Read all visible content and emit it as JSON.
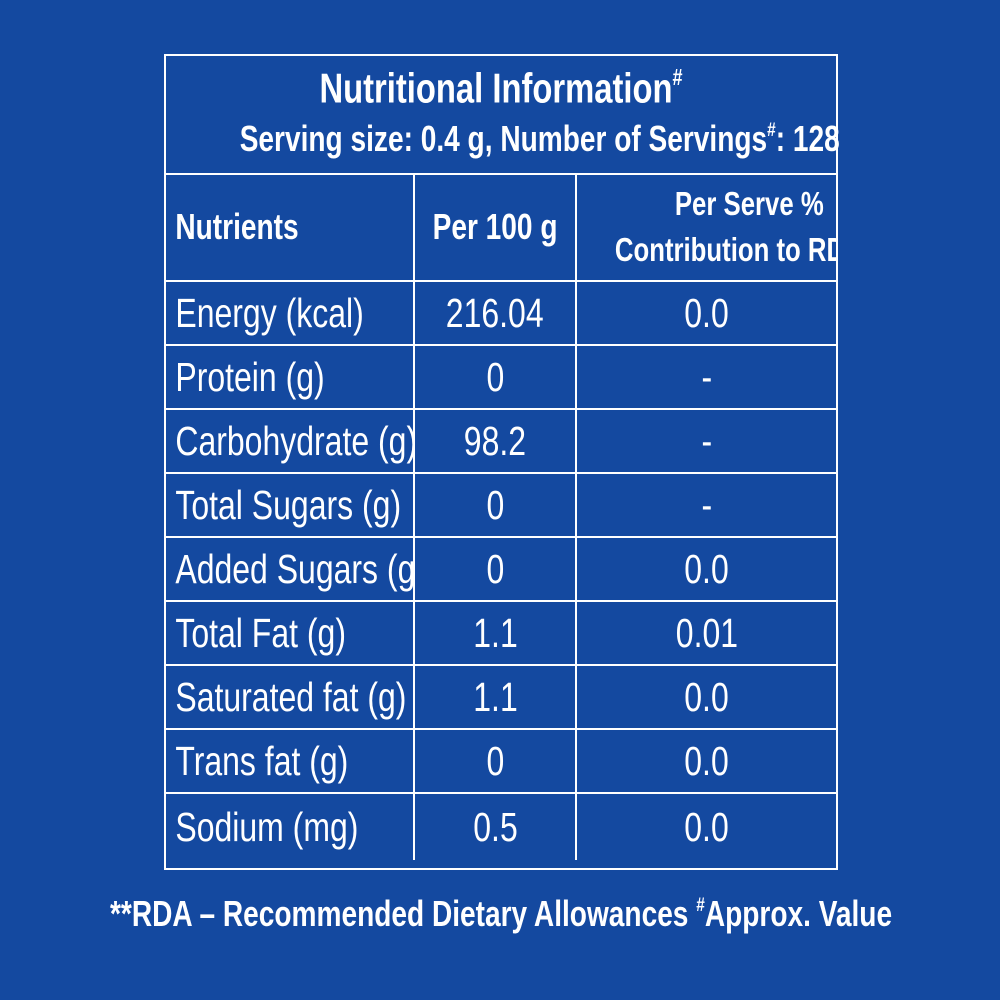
{
  "header": {
    "title": "Nutritional Information",
    "title_mark": "#",
    "serving_prefix": "Serving size: 0.4 g, Number of Servings",
    "serving_mark": "#",
    "serving_suffix": ": 128"
  },
  "table": {
    "columns": [
      "Nutrients",
      "Per 100 g",
      "Per Serve %",
      "Contribution to RDA**"
    ],
    "rows": [
      {
        "nutrient": "Energy (kcal)",
        "per100g": "216.04",
        "rda": "0.0"
      },
      {
        "nutrient": "Protein (g)",
        "per100g": "0",
        "rda": "-"
      },
      {
        "nutrient": "Carbohydrate (g)",
        "per100g": "98.2",
        "rda": "-"
      },
      {
        "nutrient": "Total Sugars (g)",
        "per100g": "0",
        "rda": "-"
      },
      {
        "nutrient": "Added Sugars (g)",
        "per100g": "0",
        "rda": "0.0"
      },
      {
        "nutrient": "Total Fat (g)",
        "per100g": "1.1",
        "rda": "0.01"
      },
      {
        "nutrient": "Saturated fat (g)",
        "per100g": "1.1",
        "rda": "0.0"
      },
      {
        "nutrient": "Trans fat (g)",
        "per100g": "0",
        "rda": "0.0"
      },
      {
        "nutrient": "Sodium (mg)",
        "per100g": "0.5",
        "rda": "0.0"
      }
    ]
  },
  "footnote": {
    "rda_part": "**RDA – Recommended Dietary Allowances ",
    "approx_mark": "#",
    "approx_part": "Approx. Value"
  },
  "colors": {
    "background": "#1449a0",
    "text": "#ffffff",
    "lines": "#ffffff"
  }
}
